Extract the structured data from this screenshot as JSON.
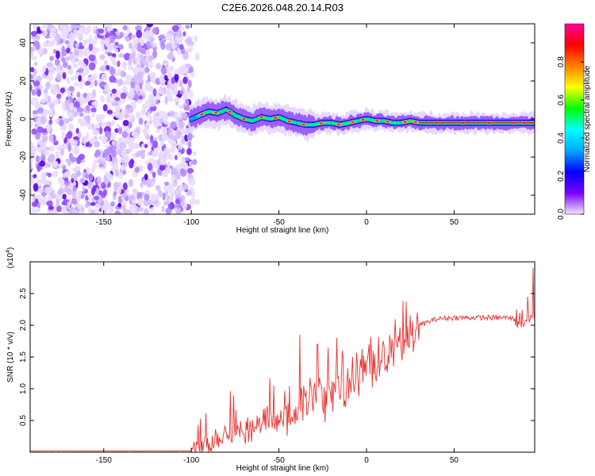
{
  "title": "C2E6.2026.048.20.14.R03",
  "colors": {
    "snr_line": "#e8302e",
    "axis": "#000000",
    "background": "#ffffff"
  },
  "chart_data": [
    {
      "type": "heatmap",
      "name": "spectrogram",
      "xlabel": "Height of straight line (km)",
      "ylabel": "Frequency (Hz)",
      "xlim": [
        -192,
        96
      ],
      "ylim": [
        -50,
        50
      ],
      "x_ticks": [
        -150,
        -100,
        -50,
        0,
        50
      ],
      "x_tick_labels": [
        "-150",
        "-100",
        "-50",
        "0",
        "50"
      ],
      "y_ticks": [
        -40,
        -20,
        0,
        20,
        40
      ],
      "y_tick_labels": [
        "-40",
        "-20",
        "0",
        "20",
        "40"
      ],
      "noise_region_km": [
        -192,
        -100
      ],
      "signal_start_km": -100,
      "ridge": {
        "x": [
          -100,
          -95,
          -90,
          -85,
          -80,
          -75,
          -70,
          -65,
          -60,
          -55,
          -50,
          -45,
          -40,
          -35,
          -30,
          -25,
          -20,
          -15,
          -10,
          -5,
          0,
          5,
          10,
          15,
          20,
          25,
          30,
          40,
          50,
          60,
          70,
          80,
          90,
          96
        ],
        "y": [
          0,
          2,
          4,
          3,
          5,
          2,
          0,
          -1,
          1,
          0,
          1,
          -1,
          -2,
          -3,
          -3,
          -2,
          -2,
          -3,
          -2,
          -1,
          0,
          -1,
          -1,
          -2,
          -2,
          -1,
          -2,
          -2,
          -2,
          -2,
          -2,
          -2,
          -2,
          -2
        ]
      },
      "colorbar": {
        "label": "Normalized spectral amplitude",
        "range": [
          0,
          1
        ],
        "ticks": [
          0.0,
          0.2,
          0.4,
          0.6,
          0.8
        ],
        "tick_labels": [
          "0.0",
          "0.2",
          "0.4",
          "0.6",
          "0.8"
        ],
        "colors": [
          "#f0e8ff",
          "#7a00ff",
          "#0000ff",
          "#00aaff",
          "#00ffff",
          "#00ff00",
          "#ffff00",
          "#ff8000",
          "#ff0000",
          "#ff0099"
        ]
      }
    },
    {
      "type": "line",
      "name": "snr",
      "xlabel": "Height of straight line (km)",
      "ylabel": "SNR (10 * v/v)",
      "multiplier_label": "(x10",
      "multiplier_exp": "4",
      "multiplier_close": ")",
      "xlim": [
        -192,
        96
      ],
      "ylim": [
        0,
        3
      ],
      "x_ticks": [
        -150,
        -100,
        -50,
        0,
        50
      ],
      "x_tick_labels": [
        "-150",
        "-100",
        "-50",
        "0",
        "50"
      ],
      "y_ticks": [
        0.5,
        1.0,
        1.5,
        2.0,
        2.5
      ],
      "y_tick_labels": [
        "0.5",
        "1.0",
        "1.5",
        "2.0",
        "2.5"
      ],
      "envelope": {
        "x": [
          -192,
          -100,
          -95,
          -90,
          -85,
          -80,
          -75,
          -70,
          -65,
          -60,
          -55,
          -50,
          -45,
          -40,
          -38,
          -35,
          -30,
          -25,
          -20,
          -15,
          -10,
          -5,
          0,
          5,
          10,
          15,
          20,
          25,
          30,
          35,
          40,
          50,
          60,
          70,
          80,
          85,
          90,
          95,
          96
        ],
        "y": [
          0.02,
          0.02,
          0.05,
          0.15,
          0.25,
          0.3,
          0.35,
          0.3,
          0.4,
          0.45,
          0.5,
          0.45,
          0.5,
          0.6,
          0.8,
          0.75,
          0.85,
          0.9,
          0.95,
          1.0,
          1.05,
          1.15,
          1.3,
          1.45,
          1.5,
          1.6,
          1.7,
          1.85,
          2.0,
          2.05,
          2.1,
          2.12,
          2.12,
          2.12,
          2.12,
          2.1,
          2.1,
          2.1,
          2.1
        ]
      },
      "spikes": [
        {
          "x": -38,
          "y": 1.85
        },
        {
          "x": -28,
          "y": 1.7
        },
        {
          "x": -22,
          "y": 1.65
        },
        {
          "x": -17,
          "y": 1.8
        },
        {
          "x": -14,
          "y": 1.6
        },
        {
          "x": -8,
          "y": 1.5
        },
        {
          "x": 92,
          "y": 2.45
        },
        {
          "x": 95,
          "y": 2.9
        }
      ]
    }
  ]
}
